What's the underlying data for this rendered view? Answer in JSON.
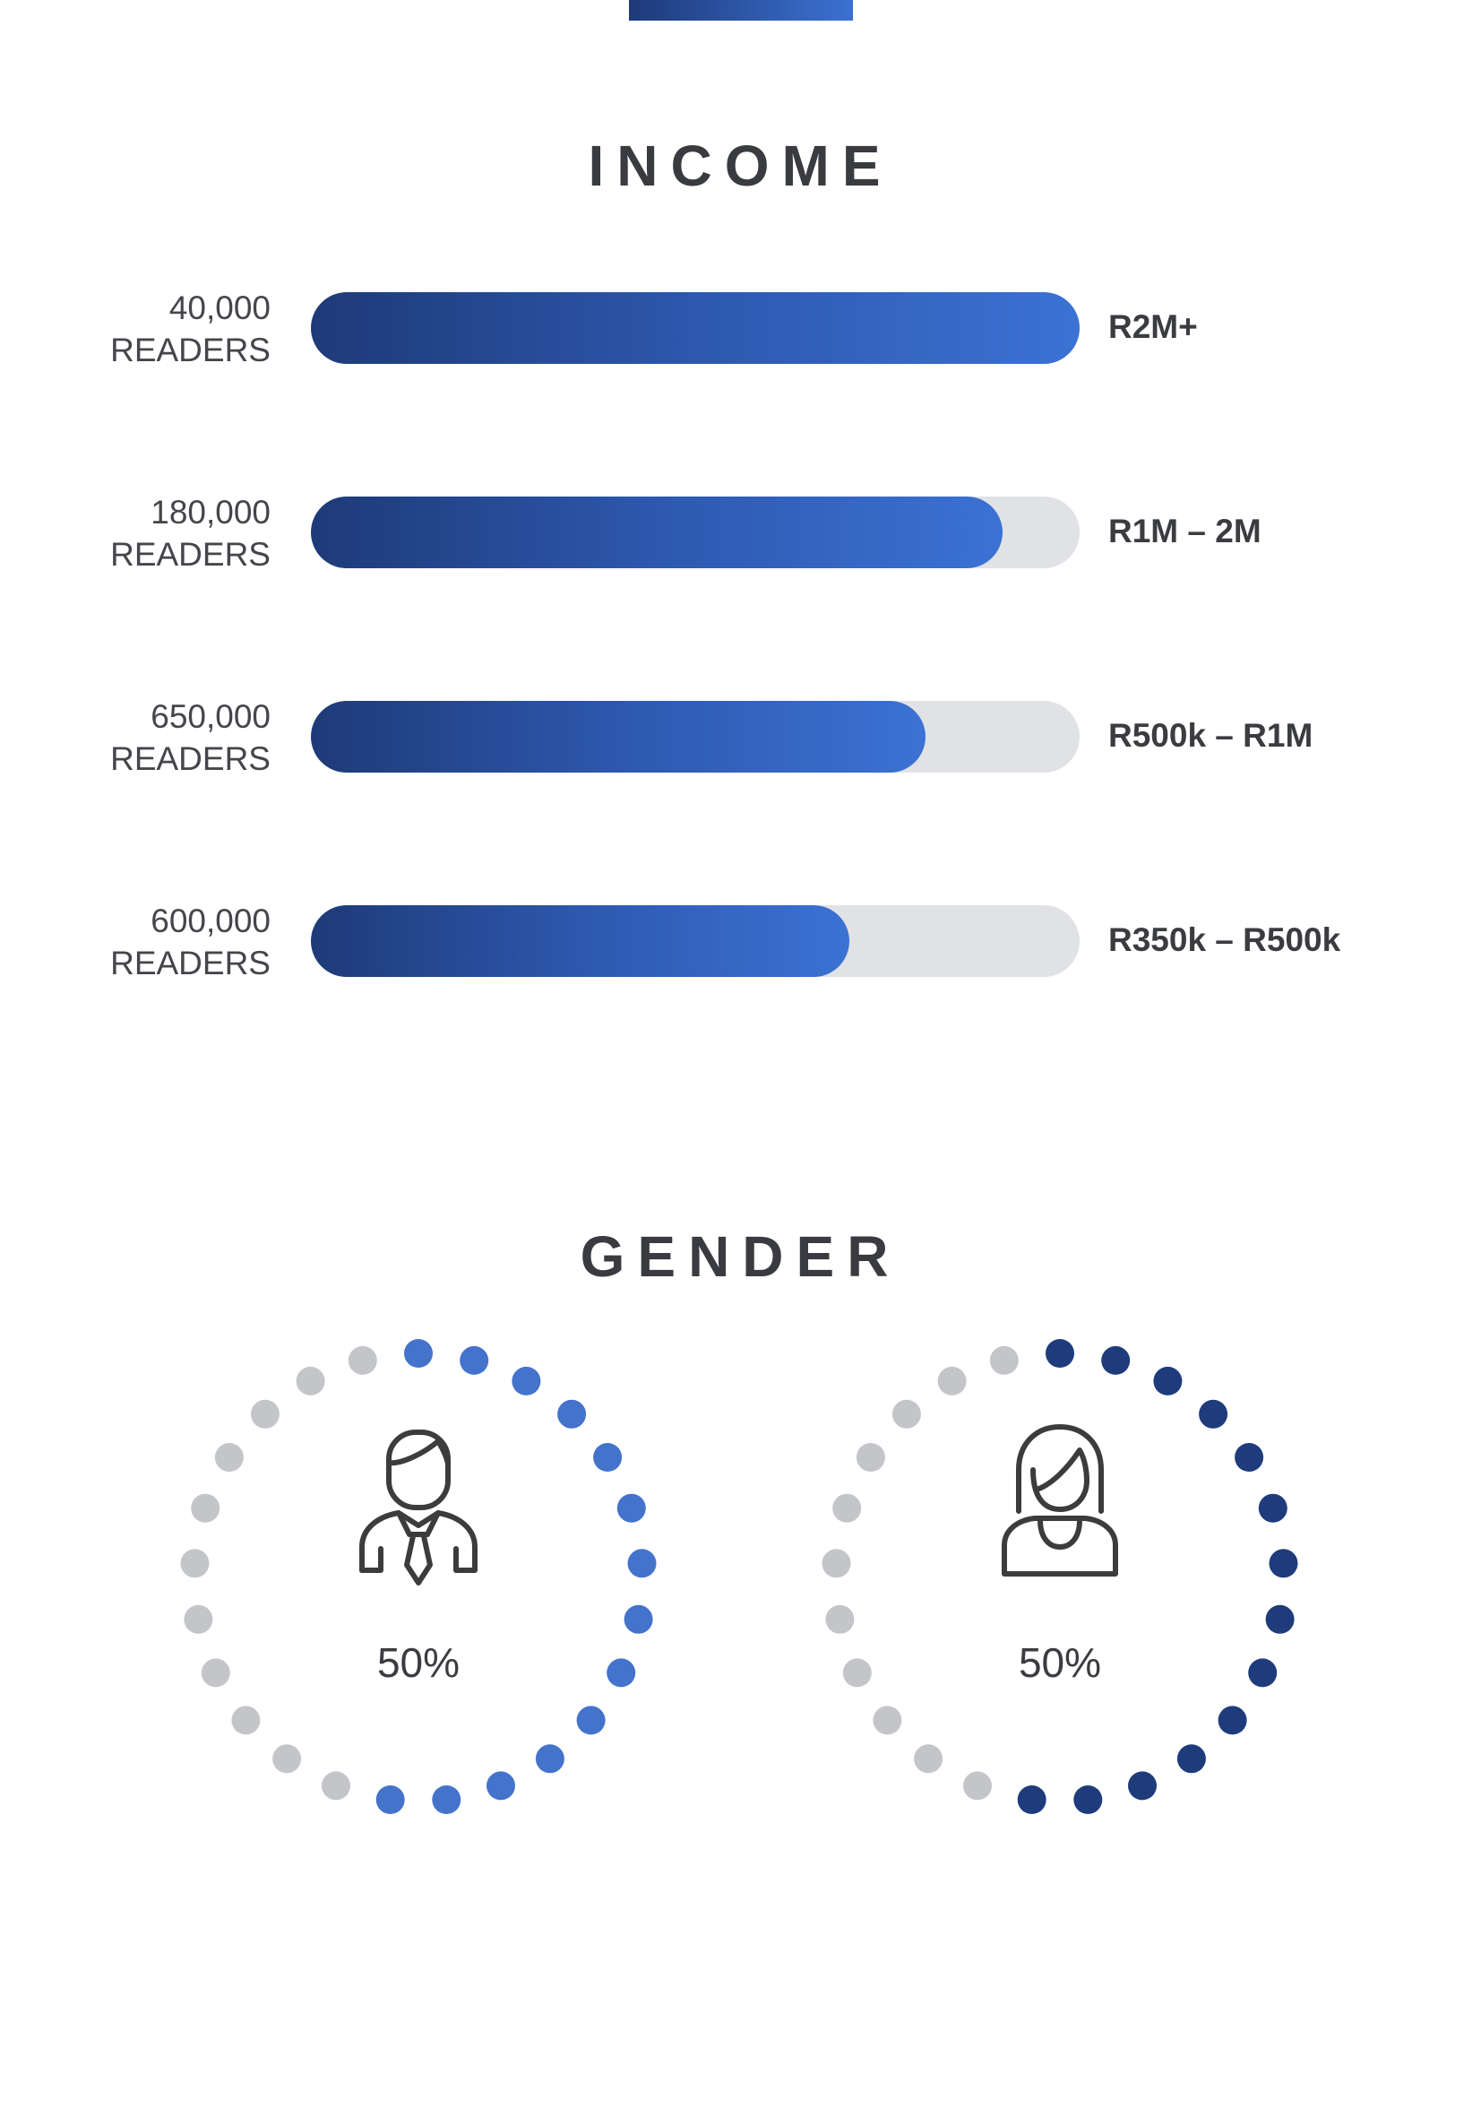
{
  "income": {
    "title": "INCOME"
  },
  "gender": {
    "title": "GENDER"
  },
  "colors": {
    "bar_start": "#1e3a78",
    "bar_end": "#3b72d4",
    "track": "#e1e2e5",
    "male_dot": "#4473cc",
    "female_dot": "#1e3c7c",
    "empty_dot": "#c4c5c8",
    "text": "#3a3c40"
  },
  "chart_data": [
    {
      "type": "bar",
      "orientation": "horizontal",
      "title": "INCOME",
      "categories": [
        "R2M+",
        "R1M – 2M",
        "R500k – R1M",
        "R350k – R500k"
      ],
      "readers_labels": [
        {
          "count": "40,000",
          "unit": "READERS"
        },
        {
          "count": "180,000",
          "unit": "READERS"
        },
        {
          "count": "650,000",
          "unit": "READERS"
        },
        {
          "count": "600,000",
          "unit": "READERS"
        }
      ],
      "fill_fractions": [
        1.0,
        0.9,
        0.8,
        0.7
      ]
    },
    {
      "type": "pie",
      "style": "dotted-ring",
      "title": "GENDER",
      "slices": [
        {
          "label": "male-icon",
          "value": 50,
          "text": "50%"
        },
        {
          "label": "female-icon",
          "value": 50,
          "text": "50%"
        }
      ]
    }
  ]
}
